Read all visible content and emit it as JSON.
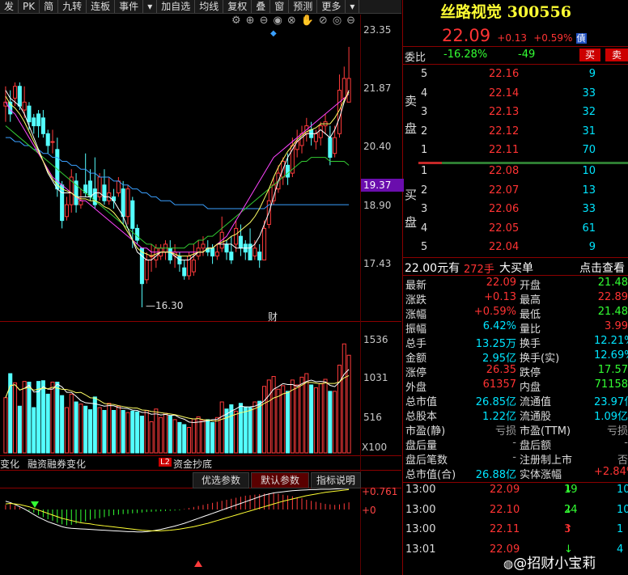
{
  "toolbar": {
    "items": [
      "发",
      "PK",
      "简",
      "九转",
      "连板",
      "事件",
      "▾",
      "加自选",
      "均线",
      "复权",
      "叠",
      "窗",
      "预测",
      "更多",
      "▾"
    ]
  },
  "chart": {
    "price_axis": [
      "23.35",
      "21.87",
      "20.40",
      "18.90",
      "17.43"
    ],
    "current_price_tag": "19.37",
    "low_label": "16.30",
    "finance_mark": "财",
    "volume_axis": [
      "1536",
      "1031",
      "516",
      "X100"
    ],
    "indicator_tabs": [
      "变化",
      "融资融券变化",
      "资金抄底"
    ],
    "l2_badge": "L2",
    "macd_axis": [
      "+0.761",
      "+0"
    ],
    "buttons": [
      "优选参数",
      "默认参数",
      "指标说明"
    ]
  },
  "stock": {
    "name": "丝路视觉",
    "code": "300556",
    "price": "22.09",
    "change": "+0.13",
    "change_pct": "+0.59%",
    "badge": "債"
  },
  "weibi": {
    "label": "委比",
    "ratio": "-16.28%",
    "diff": "-49",
    "buy_btn": "买",
    "sell_btn": "卖"
  },
  "sell_label": "卖盘",
  "buy_label": "买盘",
  "asks": [
    {
      "level": "5",
      "price": "22.16",
      "vol": "9"
    },
    {
      "level": "4",
      "price": "22.14",
      "vol": "33"
    },
    {
      "level": "3",
      "price": "22.13",
      "vol": "32"
    },
    {
      "level": "2",
      "price": "22.12",
      "vol": "31"
    },
    {
      "level": "1",
      "price": "22.11",
      "vol": "70"
    }
  ],
  "bids": [
    {
      "level": "1",
      "price": "22.08",
      "vol": "10"
    },
    {
      "level": "2",
      "price": "22.07",
      "vol": "13"
    },
    {
      "level": "3",
      "price": "22.06",
      "vol": "33"
    },
    {
      "level": "4",
      "price": "22.05",
      "vol": "61"
    },
    {
      "level": "5",
      "price": "22.04",
      "vol": "9"
    }
  ],
  "big_order": {
    "price": "22.00元有",
    "qty": "272手",
    "label": "大买单",
    "link": "点击查看"
  },
  "stats_left": [
    {
      "k": "最新",
      "v": "22.09",
      "c": "red"
    },
    {
      "k": "涨跌",
      "v": "+0.13",
      "c": "red"
    },
    {
      "k": "涨幅",
      "v": "+0.59%",
      "c": "red"
    },
    {
      "k": "振幅",
      "v": "6.42%",
      "c": "cyan"
    },
    {
      "k": "总手",
      "v": "13.25万",
      "c": "cyan"
    },
    {
      "k": "金额",
      "v": "2.95亿",
      "c": "cyan"
    },
    {
      "k": "涨停",
      "v": "26.35",
      "c": "red"
    },
    {
      "k": "外盘",
      "v": "61357",
      "c": "red"
    },
    {
      "k": "总市值",
      "v": "26.85亿",
      "c": "cyan"
    },
    {
      "k": "总股本",
      "v": "1.22亿",
      "c": "cyan"
    },
    {
      "k": "市盈(静)",
      "v": "亏损",
      "c": "gray"
    },
    {
      "k": "盘后量",
      "v": "-",
      "c": "gray"
    },
    {
      "k": "盘后笔数",
      "v": "-",
      "c": "gray"
    },
    {
      "k": "总市值(合)",
      "v": "26.88亿",
      "c": "cyan"
    }
  ],
  "stats_right": [
    {
      "k": "开盘",
      "v": "21.48",
      "c": "green"
    },
    {
      "k": "最高",
      "v": "22.89",
      "c": "red"
    },
    {
      "k": "最低",
      "v": "21.48",
      "c": "green"
    },
    {
      "k": "量比",
      "v": "3.99",
      "c": "red"
    },
    {
      "k": "换手",
      "v": "12.21%",
      "c": "cyan"
    },
    {
      "k": "换手(实)",
      "v": "12.69%",
      "c": "cyan"
    },
    {
      "k": "跌停",
      "v": "17.57",
      "c": "green"
    },
    {
      "k": "内盘",
      "v": "71158",
      "c": "green"
    },
    {
      "k": "流通值",
      "v": "23.97亿",
      "c": "cyan"
    },
    {
      "k": "流通股",
      "v": "1.09亿",
      "c": "cyan"
    },
    {
      "k": "市盈(TTM)",
      "v": "亏损",
      "c": "gray"
    },
    {
      "k": "盘后额",
      "v": "-",
      "c": "gray"
    },
    {
      "k": "注册制上市",
      "v": "否",
      "c": "gray"
    },
    {
      "k": "实体涨幅",
      "v": "+2.84%",
      "c": "red"
    }
  ],
  "trades": [
    {
      "time": "13:00",
      "price": "22.09",
      "vol": "19",
      "dir": "down",
      "count": "10"
    },
    {
      "time": "13:00",
      "price": "22.10",
      "vol": "24",
      "dir": "down",
      "count": "10"
    },
    {
      "time": "13:00",
      "price": "22.11",
      "vol": "3",
      "dir": "up",
      "count": "1"
    },
    {
      "time": "13:01",
      "price": "22.09",
      "vol": "",
      "dir": "down",
      "count": "4"
    }
  ],
  "watermark": "@招财小宝莉",
  "chart_data": {
    "type": "candlestick",
    "ylim": [
      16.3,
      23.35
    ],
    "candles": [
      [
        21.4,
        21.5,
        21.9,
        21.0
      ],
      [
        21.5,
        21.2,
        21.8,
        21.0
      ],
      [
        21.6,
        21.9,
        22.0,
        21.4
      ],
      [
        21.9,
        21.4,
        22.0,
        21.3
      ],
      [
        21.3,
        21.5,
        21.9,
        21.1
      ],
      [
        21.4,
        21.0,
        21.5,
        20.8
      ],
      [
        21.1,
        20.9,
        21.2,
        20.7
      ],
      [
        21.2,
        20.9,
        21.3,
        20.6
      ],
      [
        21.1,
        20.7,
        21.3,
        20.6
      ],
      [
        20.7,
        20.4,
        20.8,
        20.2
      ],
      [
        20.5,
        20.5,
        20.8,
        20.2
      ],
      [
        20.3,
        19.3,
        20.6,
        19.1
      ],
      [
        19.4,
        18.5,
        19.5,
        18.3
      ],
      [
        18.6,
        18.9,
        19.1,
        18.5
      ],
      [
        18.9,
        19.6,
        19.8,
        18.7
      ],
      [
        19.5,
        18.9,
        19.7,
        18.7
      ],
      [
        18.9,
        19.0,
        19.3,
        18.8
      ],
      [
        19.4,
        19.2,
        20.2,
        19.1
      ],
      [
        19.5,
        19.1,
        19.8,
        19.0
      ],
      [
        19.3,
        18.9,
        20.1,
        18.8
      ],
      [
        19.1,
        19.6,
        19.7,
        19.0
      ],
      [
        19.4,
        19.0,
        19.8,
        18.9
      ],
      [
        19.0,
        19.2,
        19.6,
        18.9
      ],
      [
        19.1,
        19.0,
        19.3,
        18.8
      ],
      [
        19.2,
        19.5,
        19.6,
        19.1
      ],
      [
        19.3,
        18.6,
        19.5,
        18.4
      ],
      [
        18.6,
        19.3,
        19.4,
        18.4
      ],
      [
        19.0,
        18.3,
        19.1,
        17.8
      ],
      [
        18.3,
        18.0,
        18.4,
        17.9
      ],
      [
        17.8,
        16.9,
        17.8,
        16.3
      ],
      [
        17.0,
        17.5,
        17.7,
        16.9
      ],
      [
        17.6,
        17.6,
        17.9,
        17.2
      ],
      [
        17.5,
        17.8,
        17.9,
        17.3
      ],
      [
        17.6,
        17.8,
        17.9,
        17.5
      ],
      [
        17.7,
        17.9,
        18.0,
        17.5
      ],
      [
        17.8,
        17.5,
        18.0,
        17.4
      ],
      [
        17.6,
        17.7,
        17.9,
        17.3
      ],
      [
        17.6,
        17.4,
        17.7,
        17.2
      ],
      [
        17.3,
        17.1,
        17.5,
        17.0
      ],
      [
        17.1,
        17.6,
        17.7,
        17.0
      ],
      [
        17.2,
        17.5,
        17.9,
        17.1
      ],
      [
        17.6,
        17.8,
        18.0,
        17.5
      ],
      [
        17.8,
        17.9,
        18.1,
        17.6
      ],
      [
        17.8,
        17.7,
        18.0,
        17.6
      ],
      [
        17.8,
        17.6,
        17.9,
        17.4
      ],
      [
        17.6,
        17.7,
        17.9,
        17.5
      ],
      [
        17.8,
        18.2,
        18.6,
        17.7
      ],
      [
        17.9,
        17.7,
        18.0,
        17.5
      ],
      [
        17.7,
        17.5,
        18.1,
        17.4
      ],
      [
        17.9,
        18.3,
        18.5,
        17.7
      ],
      [
        18.1,
        17.8,
        18.4,
        17.6
      ],
      [
        17.9,
        17.7,
        18.0,
        17.5
      ],
      [
        17.9,
        17.5,
        18.3,
        17.5
      ],
      [
        17.6,
        17.8,
        18.0,
        17.5
      ],
      [
        17.7,
        17.5,
        17.9,
        17.3
      ],
      [
        17.5,
        18.3,
        18.5,
        17.5
      ],
      [
        18.4,
        19.0,
        19.3,
        18.3
      ],
      [
        19.0,
        19.4,
        19.6,
        18.9
      ],
      [
        19.3,
        19.7,
        19.9,
        19.2
      ],
      [
        19.6,
        20.0,
        20.1,
        19.4
      ],
      [
        19.9,
        19.6,
        20.2,
        19.4
      ],
      [
        19.7,
        20.4,
        20.6,
        19.6
      ],
      [
        20.3,
        20.5,
        20.8,
        20.1
      ],
      [
        20.4,
        20.7,
        20.9,
        20.2
      ],
      [
        20.7,
        20.9,
        21.1,
        20.5
      ],
      [
        20.8,
        20.6,
        21.0,
        20.4
      ],
      [
        20.5,
        20.7,
        20.8,
        20.3
      ],
      [
        20.6,
        20.9,
        21.0,
        20.4
      ],
      [
        20.9,
        21.0,
        21.2,
        20.7
      ],
      [
        20.6,
        20.1,
        20.9,
        19.9
      ],
      [
        20.2,
        20.6,
        20.9,
        20.1
      ],
      [
        20.7,
        21.8,
        22.2,
        20.6
      ],
      [
        21.6,
        22.1,
        22.4,
        21.5
      ],
      [
        21.5,
        22.1,
        22.9,
        21.5
      ]
    ],
    "volumes": [
      780,
      1120,
      990,
      660,
      1010,
      1000,
      640,
      1010,
      1020,
      830,
      1000,
      1000,
      810,
      640,
      830,
      720,
      690,
      660,
      610,
      790,
      640,
      600,
      700,
      600,
      660,
      600,
      570,
      590,
      580,
      520,
      600,
      440,
      620,
      500,
      560,
      520,
      470,
      430,
      400,
      360,
      480,
      510,
      460,
      470,
      430,
      500,
      720,
      620,
      680,
      590,
      700,
      650,
      640,
      720,
      730,
      940,
      1030,
      1080,
      900,
      950,
      870,
      1030,
      960,
      1070,
      1120,
      960,
      920,
      980,
      1040,
      870,
      870,
      1240,
      1540,
      1380
    ],
    "ma5": [
      21.8,
      21.6,
      21.5,
      21.4,
      21.2,
      20.9,
      20.6,
      20.3,
      20.0,
      19.7,
      19.5,
      19.3,
      19.2,
      19.2,
      19.2,
      19.1,
      19.1,
      19.1,
      19.1,
      19.2,
      19.2,
      19.1,
      19.1,
      19.0,
      18.8,
      18.6,
      18.3,
      18.0,
      17.7,
      17.6,
      17.5,
      17.5,
      17.6,
      17.7,
      17.7,
      17.7,
      17.6,
      17.5,
      17.5,
      17.5,
      17.6,
      17.7,
      17.7,
      17.8,
      17.8,
      17.9,
      17.9,
      17.9,
      17.9,
      17.8,
      17.8,
      17.8,
      17.8,
      17.9,
      18.1,
      18.4,
      18.7,
      19.1,
      19.5,
      19.8,
      20.1,
      20.3,
      20.5,
      20.6,
      20.7,
      20.7,
      20.7,
      20.8,
      20.7,
      20.6,
      20.8,
      21.1,
      21.5,
      21.8
    ],
    "ma10": [
      21.5,
      21.3,
      21.2,
      21.0,
      20.8,
      20.6,
      20.4,
      20.2,
      20.0,
      19.8,
      19.6,
      19.5,
      19.4,
      19.3,
      19.2,
      19.1,
      19.0,
      19.0,
      18.9,
      18.8,
      18.7,
      18.6,
      18.5,
      18.4,
      18.3,
      18.2,
      18.1,
      18.0,
      17.9,
      17.8,
      17.8,
      17.7,
      17.7,
      17.7,
      17.7,
      17.7,
      17.7,
      17.7,
      17.7,
      17.7,
      17.7,
      17.7,
      17.7,
      17.8,
      17.8,
      17.9,
      18.0,
      18.1,
      18.3,
      18.5,
      18.7,
      18.9,
      19.1,
      19.3,
      19.5,
      19.7,
      19.9,
      20.1,
      20.2,
      20.3,
      20.4,
      20.5,
      20.6,
      20.7,
      20.8,
      20.9,
      21.0,
      21.1,
      21.2,
      21.3,
      21.4,
      21.5,
      21.6,
      21.7
    ],
    "ma20": [
      20.9,
      20.8,
      20.7,
      20.6,
      20.5,
      20.4,
      20.3,
      20.2,
      20.1,
      20.0,
      19.9,
      19.8,
      19.7,
      19.6,
      19.5,
      19.4,
      19.3,
      19.2,
      19.1,
      19.0,
      18.9,
      18.8,
      18.7,
      18.6,
      18.5,
      18.4,
      18.3,
      18.2,
      18.1,
      18.0,
      17.9,
      17.9,
      17.8,
      17.8,
      17.8,
      17.8,
      17.8,
      17.8,
      17.8,
      17.9,
      17.9,
      18.0,
      18.0,
      18.1,
      18.1,
      18.2,
      18.3,
      18.4,
      18.5,
      18.6,
      18.7,
      18.8,
      18.9,
      19.0,
      19.1,
      19.2,
      19.3,
      19.4,
      19.5,
      19.6,
      19.7,
      19.8,
      19.9,
      20.0,
      20.0,
      20.1,
      20.1,
      20.1,
      20.1,
      20.0,
      20.0,
      20.0,
      20.0,
      19.9
    ],
    "ma60": [
      20.6,
      20.6,
      20.5,
      20.5,
      20.4,
      20.4,
      20.3,
      20.3,
      20.2,
      20.2,
      20.1,
      20.1,
      20.0,
      20.0,
      19.9,
      19.9,
      19.8,
      19.8,
      19.7,
      19.7,
      19.6,
      19.6,
      19.6,
      19.5,
      19.5,
      19.4,
      19.4,
      19.3,
      19.3,
      19.2,
      19.2,
      19.1,
      19.1,
      19.0,
      19.0,
      19.0,
      18.9,
      18.9,
      18.9,
      18.9,
      18.9,
      18.9,
      18.9,
      18.8,
      18.8,
      18.8,
      18.8,
      18.8,
      18.8,
      18.8,
      18.8,
      18.8,
      18.8,
      18.8,
      18.8,
      18.8,
      18.9,
      18.9,
      18.9,
      18.9,
      18.9,
      18.9,
      18.9,
      18.9,
      18.9,
      18.9,
      18.9,
      18.9,
      18.9,
      18.9,
      18.9,
      18.9,
      18.9,
      18.9
    ],
    "macd_hist": [
      0.18,
      0.22,
      0.15,
      0.08,
      0.02,
      -0.05,
      -0.12,
      -0.22,
      -0.3,
      -0.38,
      -0.44,
      -0.52,
      -0.58,
      -0.62,
      -0.6,
      -0.55,
      -0.5,
      -0.46,
      -0.4,
      -0.36,
      -0.34,
      -0.3,
      -0.26,
      -0.22,
      -0.2,
      -0.18,
      -0.17,
      -0.15,
      -0.14,
      -0.12,
      -0.1,
      -0.09,
      -0.08,
      -0.07,
      -0.06,
      -0.05,
      -0.04,
      -0.03,
      0.02,
      0.06,
      0.1,
      0.14,
      0.18,
      0.22,
      0.26,
      0.3,
      0.34,
      0.38,
      0.42,
      0.46,
      0.5,
      0.54,
      0.56,
      0.58,
      0.6,
      0.62,
      0.64,
      0.66,
      0.62,
      0.58,
      0.55,
      0.52,
      0.48,
      0.44,
      0.38,
      0.34,
      0.3,
      0.26,
      0.22,
      0.2,
      0.18,
      0.2,
      0.24,
      0.28
    ],
    "dif": [
      0.3,
      0.25,
      0.18,
      0.1,
      0.02,
      -0.08,
      -0.18,
      -0.28,
      -0.36,
      -0.44,
      -0.5,
      -0.56,
      -0.62,
      -0.66,
      -0.68,
      -0.69,
      -0.7,
      -0.71,
      -0.72,
      -0.73,
      -0.74,
      -0.75,
      -0.76,
      -0.77,
      -0.78,
      -0.79,
      -0.8,
      -0.8,
      -0.81,
      -0.81,
      -0.8,
      -0.78,
      -0.75,
      -0.72,
      -0.68,
      -0.64,
      -0.6,
      -0.55,
      -0.5,
      -0.44,
      -0.38,
      -0.32,
      -0.26,
      -0.2,
      -0.14,
      -0.08,
      -0.02,
      0.04,
      0.1,
      0.16,
      0.22,
      0.28,
      0.34,
      0.4,
      0.46,
      0.52,
      0.56,
      0.6,
      0.62,
      0.64,
      0.66,
      0.68,
      0.69,
      0.7,
      0.71,
      0.72,
      0.72,
      0.73,
      0.73,
      0.73,
      0.74,
      0.75,
      0.76,
      0.76
    ],
    "dea": [
      0.2,
      0.22,
      0.2,
      0.18,
      0.14,
      0.1,
      0.04,
      -0.02,
      -0.08,
      -0.14,
      -0.2,
      -0.26,
      -0.32,
      -0.36,
      -0.4,
      -0.44,
      -0.48,
      -0.5,
      -0.52,
      -0.55,
      -0.57,
      -0.59,
      -0.61,
      -0.63,
      -0.65,
      -0.67,
      -0.69,
      -0.71,
      -0.73,
      -0.75,
      -0.76,
      -0.77,
      -0.77,
      -0.77,
      -0.76,
      -0.75,
      -0.73,
      -0.71,
      -0.68,
      -0.65,
      -0.62,
      -0.58,
      -0.54,
      -0.5,
      -0.45,
      -0.4,
      -0.35,
      -0.3,
      -0.25,
      -0.2,
      -0.15,
      -0.1,
      -0.05,
      0.0,
      0.05,
      0.1,
      0.15,
      0.2,
      0.25,
      0.3,
      0.34,
      0.38,
      0.42,
      0.46,
      0.5,
      0.53,
      0.56,
      0.59,
      0.62,
      0.64,
      0.66,
      0.68,
      0.7,
      0.72
    ]
  }
}
